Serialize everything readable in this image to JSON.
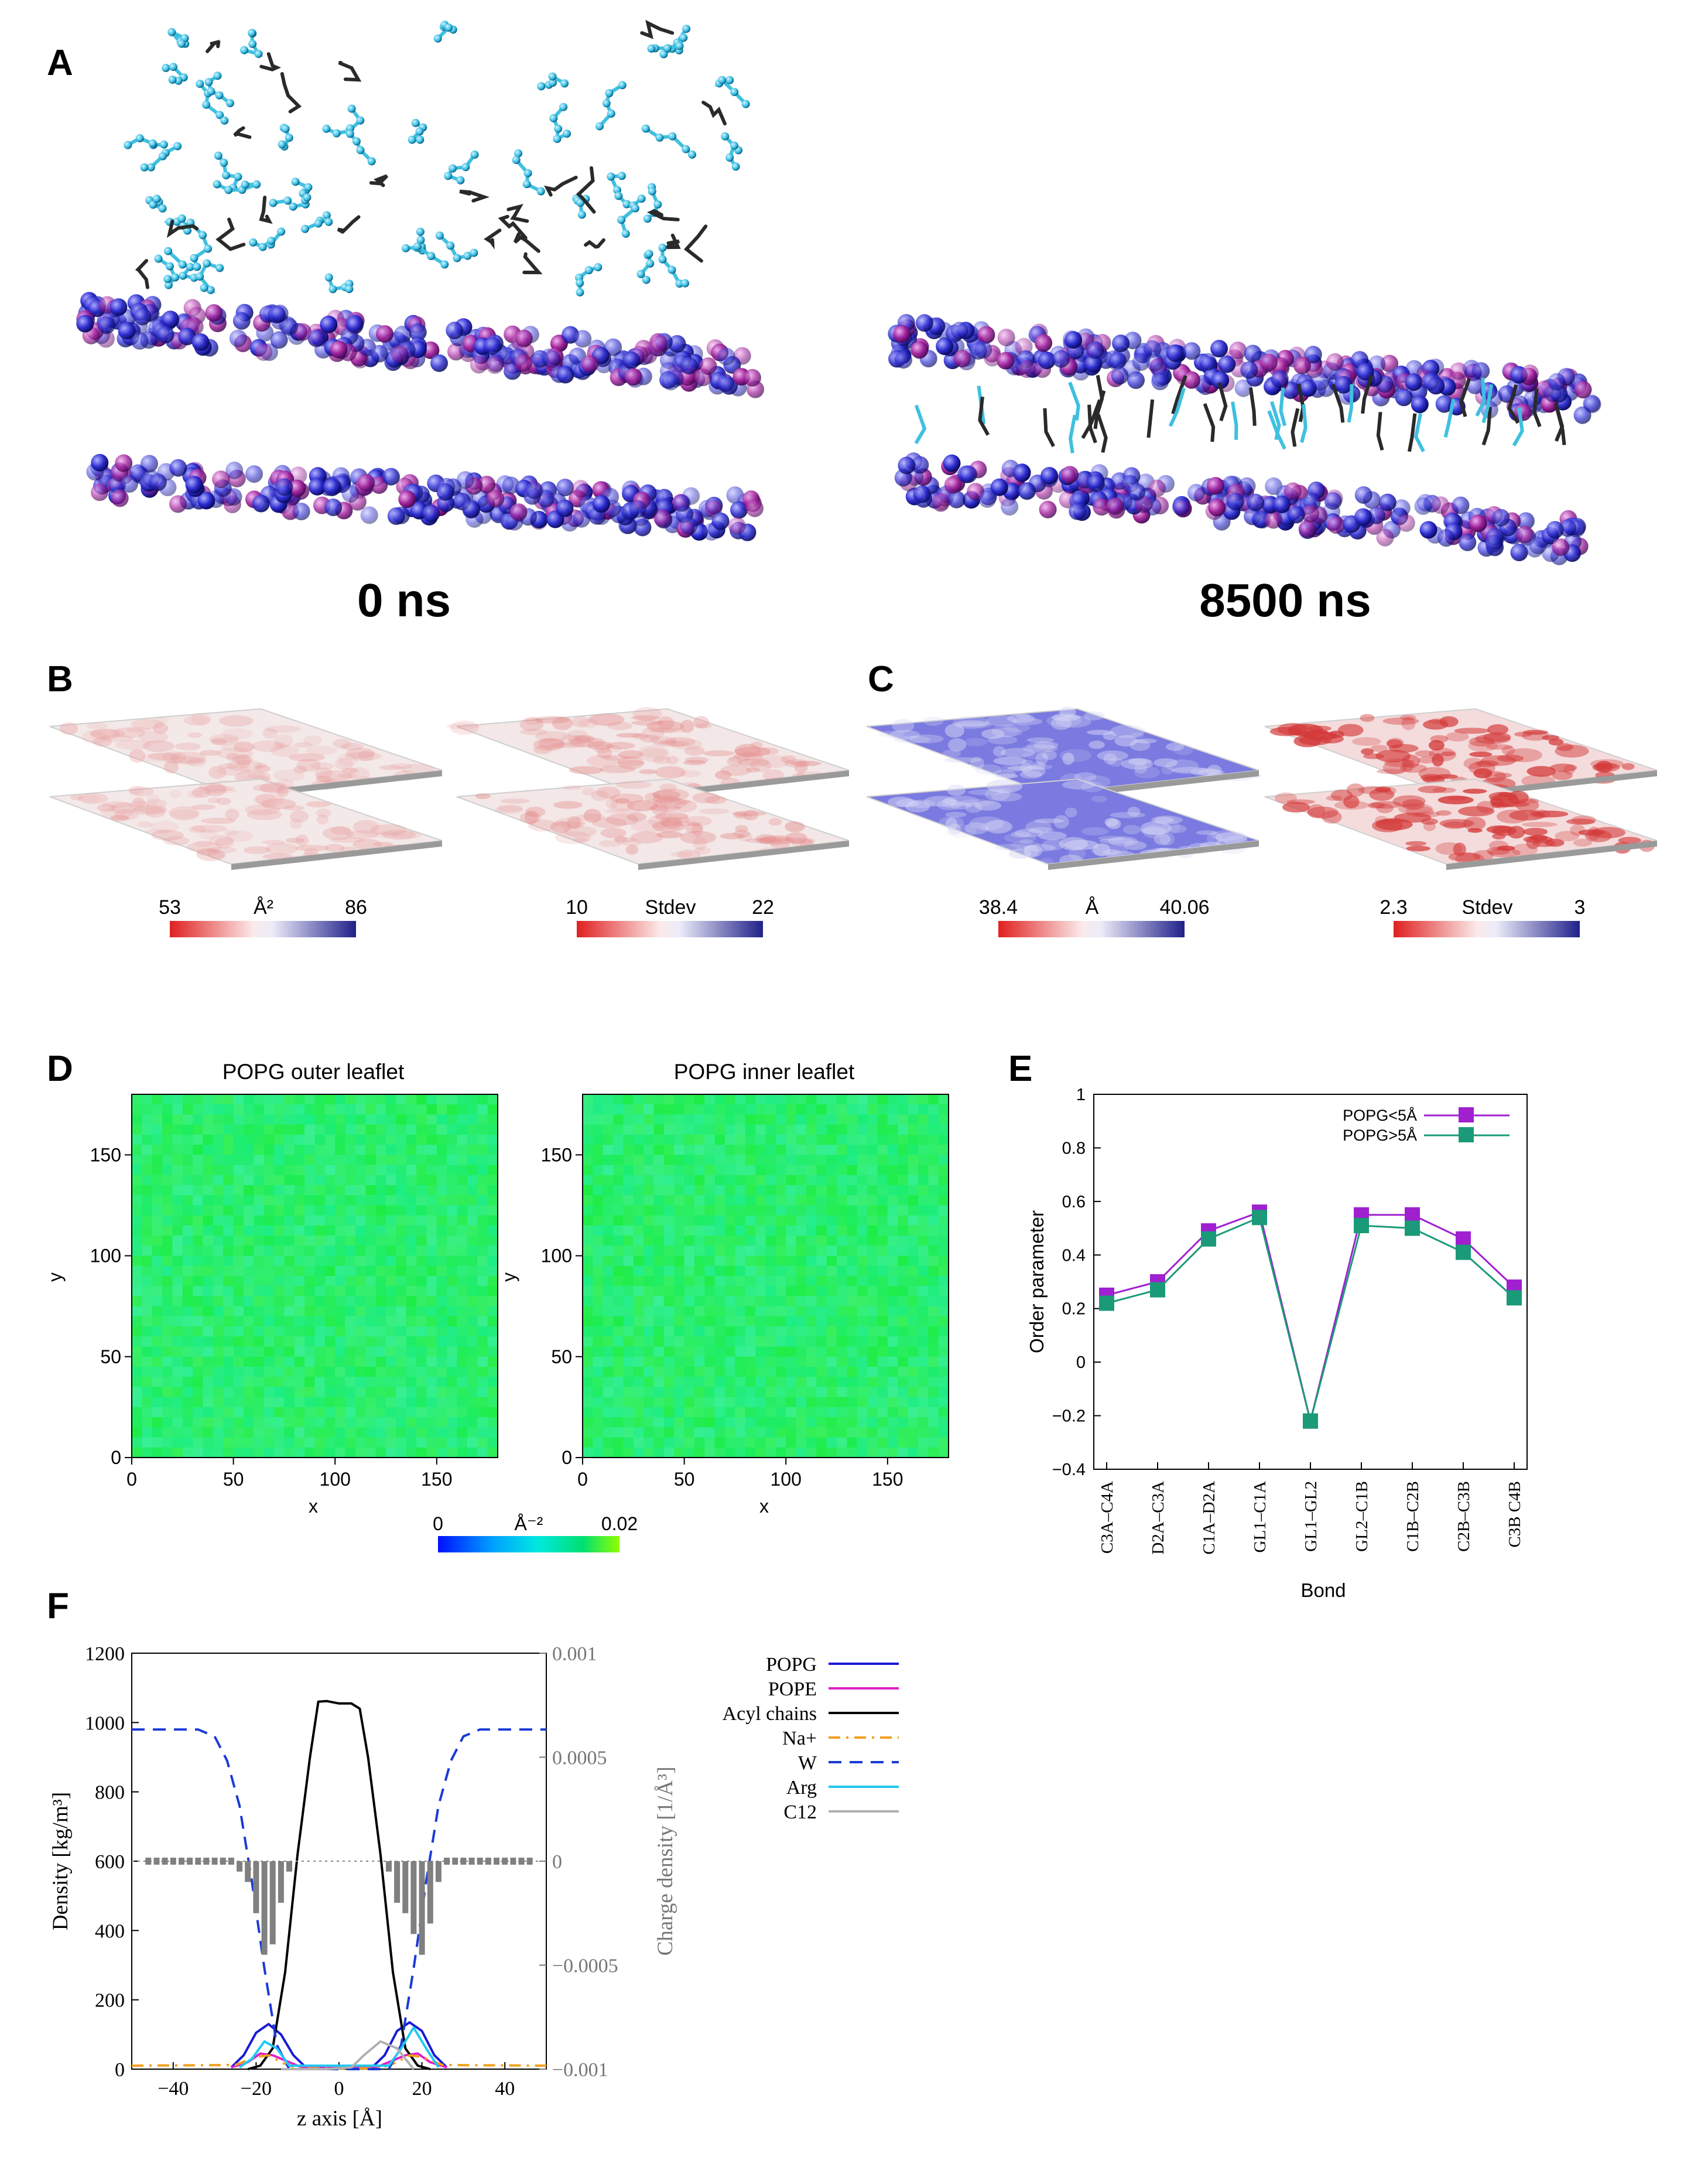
{
  "panels": {
    "A": {
      "letter": "A",
      "left_time": "0 ns",
      "right_time": "8500 ns",
      "colors": {
        "popg": "#8a2a9a",
        "pope": "#2a36c8",
        "lipo_cyan": "#3fc0e0",
        "lipo_dark": "#2a2a2a"
      }
    },
    "B": {
      "letter": "B",
      "maps": [
        {
          "name": "area-per-lipid",
          "scale_min": "53",
          "scale_unit": "Å²",
          "scale_max": "86",
          "surface": "#f4e9e9",
          "spot": "#e79a9a",
          "spot_level": 0.25
        },
        {
          "name": "area-stdev",
          "scale_min": "10",
          "scale_unit": "Stdev",
          "scale_max": "22",
          "surface": "#f3e7e7",
          "spot": "#e58a8a",
          "spot_level": 0.3
        }
      ]
    },
    "C": {
      "letter": "C",
      "maps": [
        {
          "name": "thickness",
          "scale_min": "38.4",
          "scale_unit": "Å",
          "scale_max": "40.06",
          "surface": "#7a7ae0",
          "spot": "#d8d8f6",
          "spot_level": 0.35
        },
        {
          "name": "thickness-stdev",
          "scale_min": "2.3",
          "scale_unit": "Stdev",
          "scale_max": "3",
          "surface": "#f4dcdc",
          "spot": "#d43a3a",
          "spot_level": 0.55
        }
      ]
    },
    "D": {
      "letter": "D",
      "colorbar": {
        "min": "0",
        "unit": "Å⁻²",
        "max": "0.02"
      }
    },
    "E": {
      "letter": "E"
    },
    "F": {
      "letter": "F",
      "legend": [
        {
          "label": "POPG",
          "color": "#1a1ad6",
          "dash": "solid"
        },
        {
          "label": "POPE",
          "color": "#e020c8",
          "dash": "solid"
        },
        {
          "label": "Acyl chains",
          "color": "#000000",
          "dash": "solid"
        },
        {
          "label": "Na+",
          "color": "#f0a020",
          "dash": "dashdot"
        },
        {
          "label": "W",
          "color": "#1a3ad6",
          "dash": "dashed"
        },
        {
          "label": "Arg",
          "color": "#20c8f0",
          "dash": "solid"
        },
        {
          "label": "C12",
          "color": "#b0b0b0",
          "dash": "solid"
        }
      ]
    }
  },
  "chart_data": [
    {
      "panel": "D",
      "type": "heatmap",
      "title": "POPG outer leaflet",
      "xlabel": "x",
      "ylabel": "y",
      "xlim": [
        0,
        180
      ],
      "ylim": [
        0,
        180
      ],
      "xticks": [
        "0",
        "50",
        "100",
        "150"
      ],
      "yticks": [
        "0",
        "50",
        "100",
        "150"
      ],
      "value_range": [
        0,
        0.02
      ],
      "typical_value": 0.012
    },
    {
      "panel": "D",
      "type": "heatmap",
      "title": "POPG inner leaflet",
      "xlabel": "x",
      "ylabel": "y",
      "xlim": [
        0,
        180
      ],
      "ylim": [
        0,
        180
      ],
      "xticks": [
        "0",
        "50",
        "100",
        "150"
      ],
      "yticks": [
        "0",
        "50",
        "100",
        "150"
      ],
      "value_range": [
        0,
        0.02
      ],
      "typical_value": 0.012
    },
    {
      "panel": "E",
      "type": "line",
      "xlabel": "Bond",
      "ylabel": "Order parameter",
      "categories": [
        "C3A–C4A",
        "D2A–C3A",
        "C1A–D2A",
        "GL1–C1A",
        "GL1–GL2",
        "GL2–C1B",
        "C1B–C2B",
        "C2B–C3B",
        "C3B C4B"
      ],
      "ylim": [
        -0.4,
        1
      ],
      "yticks": [
        "−0.4",
        "−0.2",
        "0",
        "0.2",
        "0.4",
        "0.6",
        "0.8",
        "1"
      ],
      "series": [
        {
          "name": "POPG<5Å",
          "color": "#a020d0",
          "values": [
            0.25,
            0.3,
            0.49,
            0.56,
            -0.22,
            0.55,
            0.55,
            0.46,
            0.28
          ]
        },
        {
          "name": "POPG>5Å",
          "color": "#1a9a78",
          "values": [
            0.22,
            0.27,
            0.46,
            0.54,
            -0.22,
            0.51,
            0.5,
            0.41,
            0.24
          ]
        }
      ],
      "legend": "top-right"
    },
    {
      "panel": "F",
      "type": "line",
      "xlabel": "z axis [Å]",
      "ylabel": "Density [kg/m³]",
      "y2label": "Charge density [1/Å³]",
      "xlim": [
        -50,
        50
      ],
      "ylim": [
        0,
        1200
      ],
      "y2lim": [
        -0.001,
        0.001
      ],
      "xticks": [
        "−40",
        "−20",
        "0",
        "20",
        "40"
      ],
      "yticks": [
        "0",
        "200",
        "400",
        "600",
        "800",
        "1000",
        "1200"
      ],
      "y2ticks": [
        "−0.001",
        "−0.0005",
        "0",
        "0.0005",
        "0.001"
      ],
      "series": [
        {
          "name": "POPG",
          "color": "#1a1ad6",
          "x": [
            -26,
            -23,
            -20,
            -17,
            -14,
            -11,
            -8,
            8,
            11,
            14,
            17,
            20,
            23,
            26
          ],
          "y": [
            5,
            40,
            105,
            130,
            100,
            40,
            5,
            5,
            40,
            110,
            135,
            110,
            40,
            5
          ]
        },
        {
          "name": "POPE",
          "color": "#e020c8",
          "x": [
            -26,
            -22,
            -19,
            -16,
            -13,
            -9,
            9,
            13,
            16,
            19,
            22,
            26
          ],
          "y": [
            5,
            20,
            45,
            40,
            25,
            5,
            5,
            25,
            40,
            45,
            20,
            5
          ]
        },
        {
          "name": "Acyl chains",
          "color": "#000000",
          "x": [
            -22,
            -19,
            -16,
            -13,
            -10,
            -7,
            -5,
            -3,
            0,
            3,
            5,
            7,
            10,
            13,
            16,
            19,
            22
          ],
          "y": [
            0,
            10,
            60,
            280,
            620,
            900,
            1060,
            1062,
            1055,
            1055,
            1040,
            900,
            620,
            280,
            60,
            10,
            0
          ]
        },
        {
          "name": "Na+",
          "color": "#f0a020",
          "x": [
            -50,
            -25,
            -20,
            -17,
            -14,
            -10,
            10,
            14,
            17,
            20,
            25,
            50
          ],
          "y": [
            10,
            12,
            35,
            40,
            20,
            2,
            2,
            20,
            40,
            35,
            12,
            10
          ]
        },
        {
          "name": "W",
          "color": "#1a3ad6",
          "x": [
            -50,
            -34,
            -30,
            -27,
            -24,
            -21,
            -18,
            -15,
            -12,
            12,
            15,
            18,
            21,
            24,
            27,
            30,
            34,
            50
          ],
          "y": [
            980,
            980,
            960,
            890,
            760,
            540,
            290,
            70,
            0,
            0,
            70,
            290,
            540,
            760,
            890,
            960,
            980,
            980
          ]
        },
        {
          "name": "Arg",
          "color": "#20c8f0",
          "x": [
            -24,
            -21,
            -18,
            -15,
            -12,
            12,
            15,
            18,
            21,
            24
          ],
          "y": [
            5,
            30,
            80,
            60,
            10,
            10,
            60,
            120,
            60,
            5
          ]
        },
        {
          "name": "C12",
          "color": "#b0b0b0",
          "x": [
            -14,
            -10,
            -6,
            -3,
            3,
            6,
            10,
            14,
            18
          ],
          "y": [
            0,
            0,
            0,
            0,
            5,
            40,
            80,
            60,
            0
          ]
        },
        {
          "name": "charge density",
          "color": "#808080",
          "axis": "y2",
          "x": [
            -46,
            -44,
            -42,
            -40,
            -38,
            -36,
            -34,
            -32,
            -30,
            -28,
            -26,
            -24,
            -22,
            -20,
            -18,
            -16,
            -14,
            -12,
            12,
            14,
            16,
            18,
            20,
            22,
            24,
            26,
            28,
            30,
            32,
            34,
            36,
            38,
            40,
            42,
            44,
            46
          ],
          "y": [
            0.0,
            0.0,
            0.0,
            0.0,
            0.0,
            0.0,
            0.0,
            0.0,
            0.0,
            0.0,
            0.0,
            -5e-05,
            -0.0001,
            -0.00025,
            -0.00045,
            -0.0004,
            -0.0002,
            -5e-05,
            -5e-05,
            -0.0002,
            -0.00025,
            -0.00035,
            -0.00045,
            -0.0003,
            -0.0001,
            0.0,
            0.0,
            0.0,
            0.0,
            0.0,
            0.0,
            0.0,
            0.0,
            0.0,
            0.0,
            0.0
          ]
        }
      ]
    }
  ]
}
